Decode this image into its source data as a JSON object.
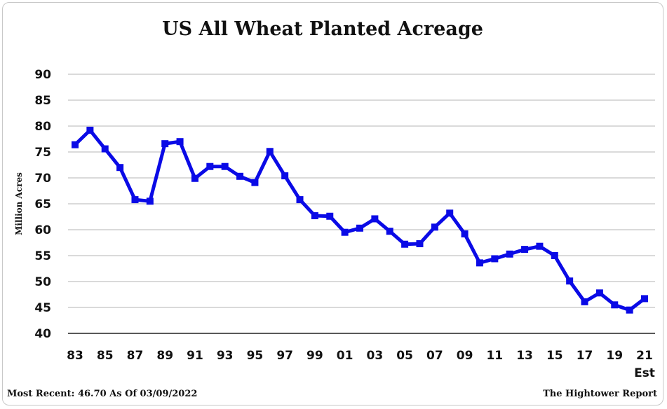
{
  "chart_data": {
    "type": "line",
    "title": "US All Wheat Planted Acreage",
    "ylabel": "Million Acres",
    "xlabel": "",
    "ylim": [
      40,
      90
    ],
    "yticks": [
      40,
      45,
      50,
      55,
      60,
      65,
      70,
      75,
      80,
      85,
      90
    ],
    "grid": true,
    "x": [
      "83",
      "84",
      "85",
      "86",
      "87",
      "88",
      "89",
      "90",
      "91",
      "92",
      "93",
      "94",
      "95",
      "96",
      "97",
      "98",
      "99",
      "00",
      "01",
      "02",
      "03",
      "04",
      "05",
      "06",
      "07",
      "08",
      "09",
      "10",
      "11",
      "12",
      "13",
      "14",
      "15",
      "16",
      "17",
      "18",
      "19",
      "20",
      "21"
    ],
    "xtick_labels": [
      "83",
      "85",
      "87",
      "89",
      "91",
      "93",
      "95",
      "97",
      "99",
      "01",
      "03",
      "05",
      "07",
      "09",
      "11",
      "13",
      "15",
      "17",
      "19",
      "21"
    ],
    "x_annotation": "Est",
    "series": [
      {
        "name": "All Wheat Planted Acreage",
        "color": "#0a0ae6",
        "values": [
          76.4,
          79.2,
          75.6,
          72.0,
          65.8,
          65.5,
          76.6,
          77.0,
          69.9,
          72.2,
          72.2,
          70.3,
          69.1,
          75.1,
          70.4,
          65.8,
          62.7,
          62.6,
          59.5,
          60.3,
          62.1,
          59.7,
          57.2,
          57.3,
          60.5,
          63.2,
          59.2,
          53.6,
          54.4,
          55.3,
          56.2,
          56.8,
          55.0,
          50.1,
          46.1,
          47.8,
          45.5,
          44.5,
          46.7
        ]
      }
    ]
  },
  "footer": {
    "left": "Most Recent: 46.70 As Of 03/09/2022",
    "right": "The Hightower Report"
  }
}
